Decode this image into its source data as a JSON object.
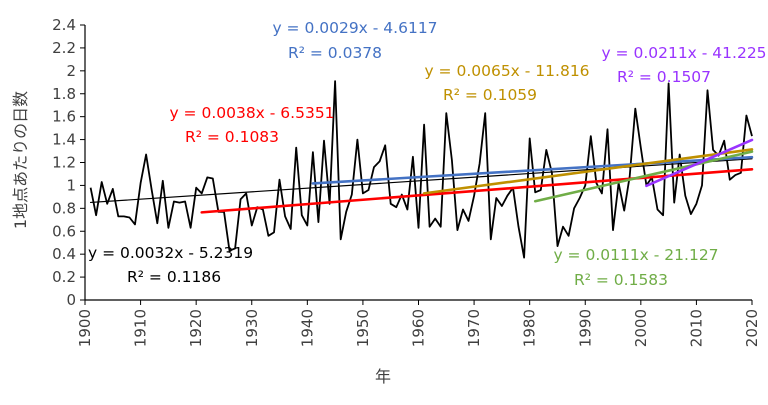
{
  "chart_data": {
    "type": "line",
    "title": "",
    "xlabel": "年",
    "ylabel": "1地点あたりの日数",
    "xlim": [
      1900,
      2020
    ],
    "ylim": [
      0,
      2.4
    ],
    "x_ticks": [
      "1900",
      "1910",
      "1920",
      "1930",
      "1940",
      "1950",
      "1960",
      "1970",
      "1980",
      "1990",
      "2000",
      "2010",
      "2020"
    ],
    "y_ticks": [
      "0",
      "0.2",
      "0.4",
      "0.6",
      "0.8",
      "1",
      "1.2",
      "1.4",
      "1.6",
      "1.8",
      "2",
      "2.2",
      "2.4"
    ],
    "grid": false,
    "series": [
      {
        "color": "#000000",
        "x": [
          1901,
          1902,
          1903,
          1904,
          1905,
          1906,
          1907,
          1908,
          1909,
          1910,
          1911,
          1912,
          1913,
          1914,
          1915,
          1916,
          1917,
          1918,
          1919,
          1920,
          1921,
          1922,
          1923,
          1924,
          1925,
          1926,
          1927,
          1928,
          1929,
          1930,
          1931,
          1932,
          1933,
          1934,
          1935,
          1936,
          1937,
          1938,
          1939,
          1940,
          1941,
          1942,
          1943,
          1944,
          1945,
          1946,
          1947,
          1948,
          1949,
          1950,
          1951,
          1952,
          1953,
          1954,
          1955,
          1956,
          1957,
          1958,
          1959,
          1960,
          1961,
          1962,
          1963,
          1964,
          1965,
          1966,
          1967,
          1968,
          1969,
          1970,
          1971,
          1972,
          1973,
          1974,
          1975,
          1976,
          1977,
          1978,
          1979,
          1980,
          1981,
          1982,
          1983,
          1984,
          1985,
          1986,
          1987,
          1988,
          1989,
          1990,
          1991,
          1992,
          1993,
          1994,
          1995,
          1996,
          1997,
          1998,
          1999,
          2000,
          2001,
          2002,
          2003,
          2004,
          2005,
          2006,
          2007,
          2008,
          2009,
          2010,
          2011,
          2012,
          2013,
          2014,
          2015,
          2016,
          2017,
          2018,
          2019,
          2020
        ],
        "y": [
          0.98,
          0.74,
          1.03,
          0.84,
          0.97,
          0.73,
          0.73,
          0.72,
          0.66,
          1.02,
          1.27,
          0.96,
          0.67,
          1.04,
          0.63,
          0.86,
          0.85,
          0.86,
          0.63,
          0.98,
          0.93,
          1.07,
          1.06,
          0.77,
          0.77,
          0.43,
          0.45,
          0.88,
          0.93,
          0.65,
          0.81,
          0.79,
          0.56,
          0.59,
          1.05,
          0.73,
          0.62,
          1.33,
          0.74,
          0.65,
          1.29,
          0.68,
          1.39,
          0.84,
          1.91,
          0.53,
          0.77,
          0.92,
          1.4,
          0.93,
          0.96,
          1.16,
          1.21,
          1.35,
          0.84,
          0.81,
          0.92,
          0.79,
          1.25,
          0.63,
          1.53,
          0.64,
          0.71,
          0.64,
          1.63,
          1.22,
          0.61,
          0.79,
          0.69,
          0.91,
          1.19,
          1.63,
          0.53,
          0.89,
          0.82,
          0.91,
          0.98,
          0.64,
          0.37,
          1.41,
          0.94,
          0.96,
          1.31,
          1.11,
          0.47,
          0.64,
          0.56,
          0.8,
          0.89,
          1.0,
          1.43,
          1.02,
          0.93,
          1.49,
          0.61,
          1.02,
          0.78,
          1.08,
          1.67,
          1.33,
          1.0,
          1.07,
          0.79,
          0.74,
          1.89,
          0.85,
          1.27,
          0.91,
          0.75,
          0.84,
          1.0,
          1.83,
          1.31,
          1.26,
          1.39,
          1.05,
          1.09,
          1.11,
          1.61,
          1.43
        ]
      }
    ],
    "trendlines": [
      {
        "color": "#000000",
        "x_range": [
          1901,
          2020
        ],
        "slope": 0.0032,
        "intercept": -5.2319,
        "equation": "y = 0.0032x - 5.2319",
        "r2": "R² = 0.1186"
      },
      {
        "color": "#ff0000",
        "x_range": [
          1921,
          2020
        ],
        "slope": 0.0038,
        "intercept": -6.5351,
        "equation": "y = 0.0038x - 6.5351",
        "r2": "R² = 0.1083"
      },
      {
        "color": "#4472c4",
        "x_range": [
          1941,
          2020
        ],
        "slope": 0.0029,
        "intercept": -4.6117,
        "equation": "y = 0.0029x - 4.6117",
        "r2": "R² = 0.0378"
      },
      {
        "color": "#bf9000",
        "x_range": [
          1961,
          2020
        ],
        "slope": 0.0065,
        "intercept": -11.816,
        "equation": "y = 0.0065x - 11.816",
        "r2": "R² = 0.1059"
      },
      {
        "color": "#70ad47",
        "x_range": [
          1981,
          2020
        ],
        "slope": 0.0111,
        "intercept": -21.127,
        "equation": "y = 0.0111x - 21.127",
        "r2": "R² = 0.1583"
      },
      {
        "color": "#9933ff",
        "x_range": [
          2001,
          2020
        ],
        "slope": 0.0211,
        "intercept": -41.225,
        "equation": "y = 0.0211x - 41.225",
        "r2": "R² = 0.1507"
      }
    ]
  }
}
